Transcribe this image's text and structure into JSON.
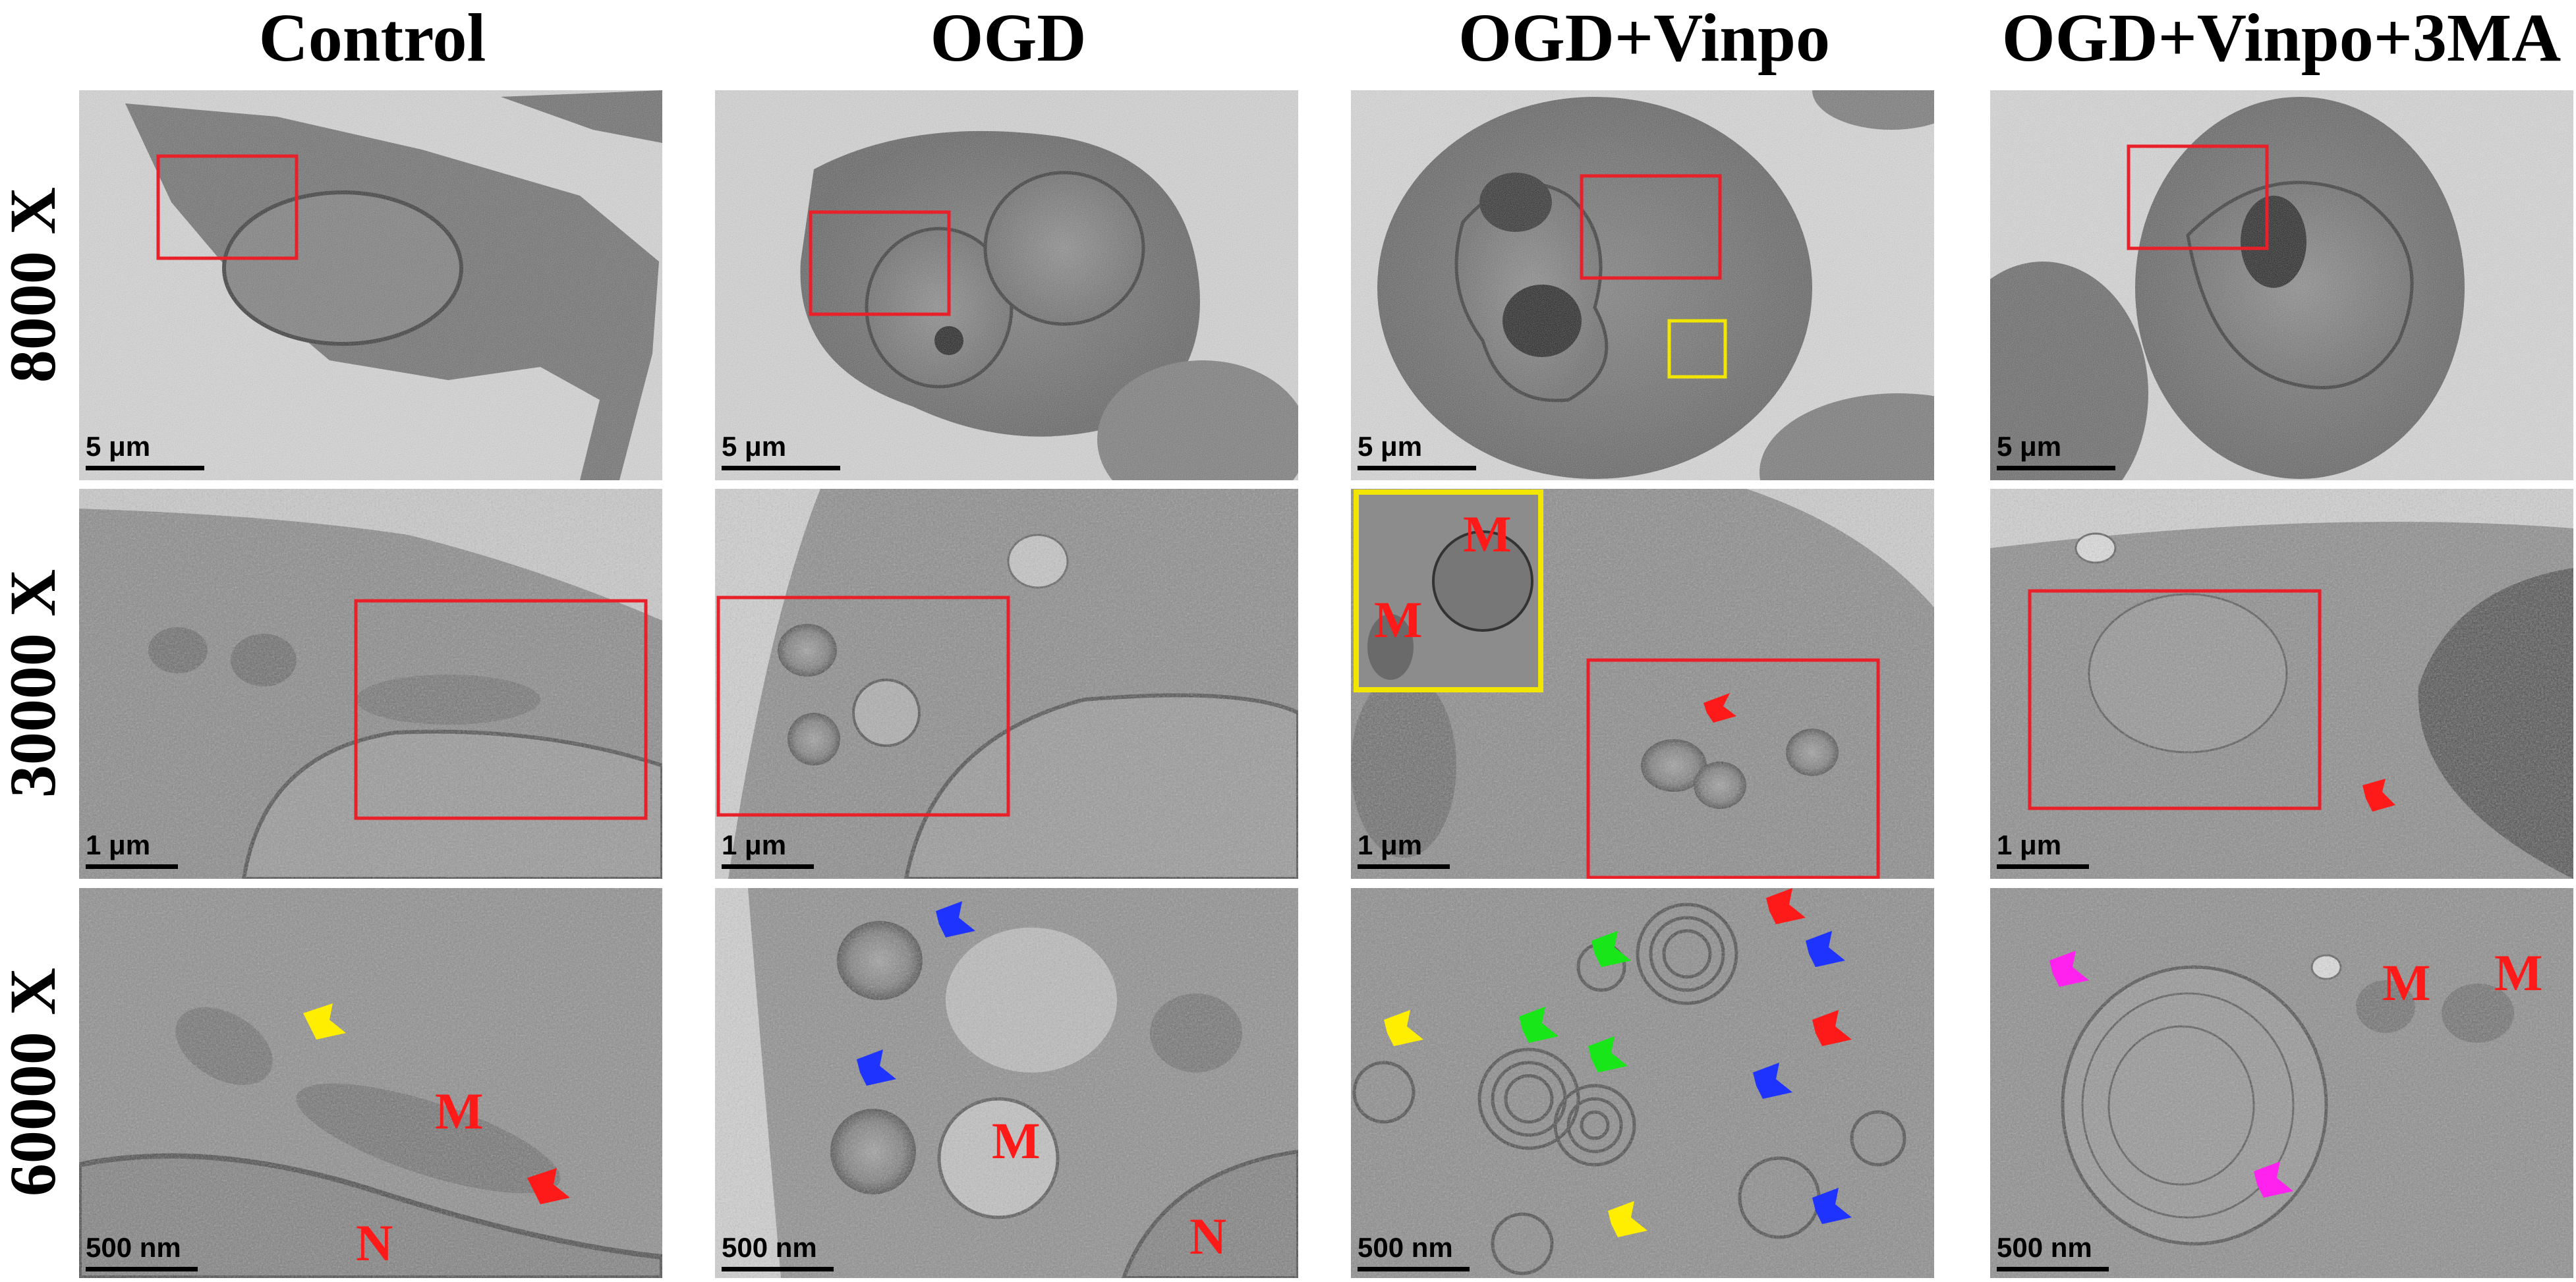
{
  "columns": [
    "Control",
    "OGD",
    "OGD+Vinpo",
    "OGD+Vinpo+3MA"
  ],
  "rows": [
    "8000 X",
    "30000 X",
    "60000 X"
  ],
  "scale_bars": {
    "row1": "5 μm",
    "row2": "1 μm",
    "row3": "500 nm"
  },
  "labels": {
    "mito": "M",
    "nucleus": "N"
  },
  "colors": {
    "box_red": "#e8202a",
    "box_yellow": "#f2e600",
    "arrow_red": "#ff1a1a",
    "arrow_yellow": "#ffee00",
    "arrow_blue": "#1f33ff",
    "arrow_green": "#19e619",
    "arrow_magenta": "#ff22ee"
  },
  "icons": [
    "arrow-marker"
  ]
}
